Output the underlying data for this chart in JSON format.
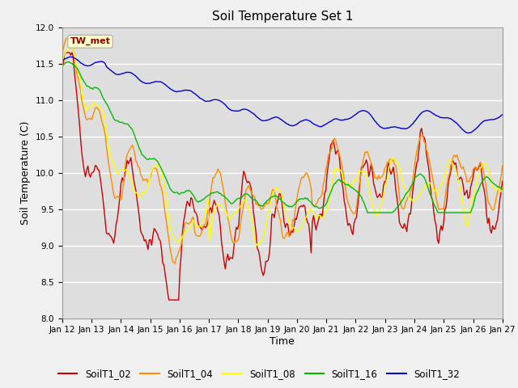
{
  "title": "Soil Temperature Set 1",
  "xlabel": "Time",
  "ylabel": "Soil Temperature (C)",
  "ylim": [
    8.0,
    12.0
  ],
  "yticks": [
    8.0,
    8.5,
    9.0,
    9.5,
    10.0,
    10.5,
    11.0,
    11.5,
    12.0
  ],
  "xtick_labels": [
    "Jan 12",
    "Jan 13",
    "Jan 14",
    "Jan 15",
    "Jan 16",
    "Jan 17",
    "Jan 18",
    "Jan 19",
    "Jan 20",
    "Jan 21",
    "Jan 22",
    "Jan 23",
    "Jan 24",
    "Jan 25",
    "Jan 26",
    "Jan 27"
  ],
  "colors": {
    "SoilT1_02": "#cc0000",
    "SoilT1_04": "#ff8c00",
    "SoilT1_08": "#ffff00",
    "SoilT1_16": "#00bb00",
    "SoilT1_32": "#0000cc"
  },
  "annotation_text": "TW_met",
  "plot_bg_color": "#dedede",
  "fig_bg_color": "#f0f0f0",
  "grid_color": "#ffffff",
  "linewidth": 1.0
}
